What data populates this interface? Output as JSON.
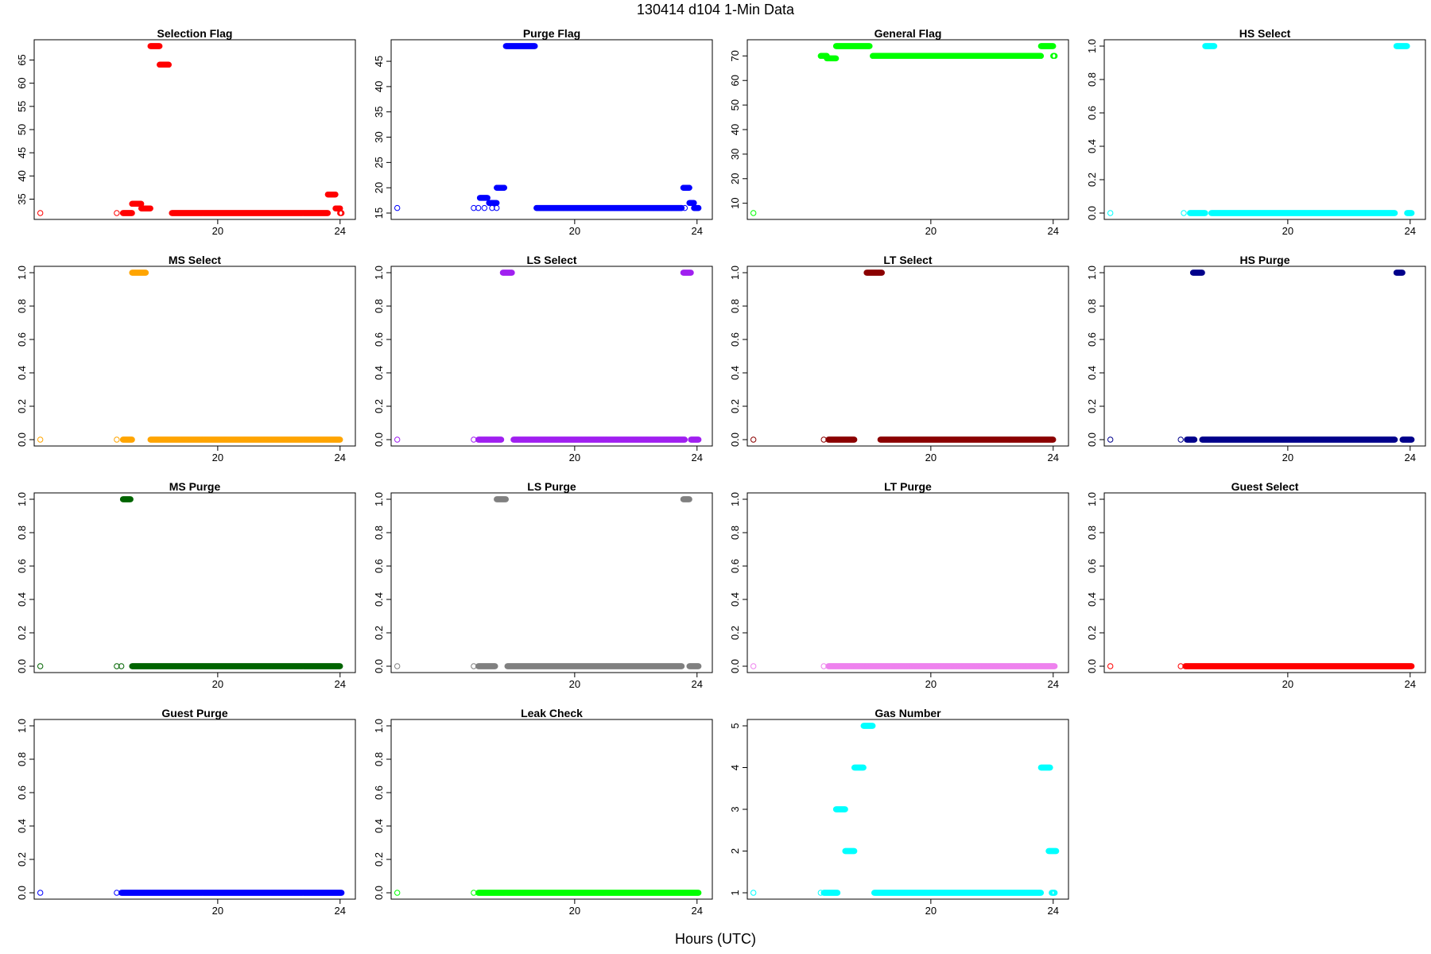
{
  "figure": {
    "title": "130414   d104   1-Min Data",
    "xlabel": "Hours (UTC)"
  },
  "chart_data": [
    {
      "type": "scatter",
      "title": "Selection Flag",
      "color": "#ff0000",
      "xlim": [
        14,
        24.5
      ],
      "ylim": [
        32,
        68
      ],
      "yticks": [
        35,
        40,
        45,
        50,
        55,
        60,
        65
      ],
      "xticks": [
        20,
        24
      ],
      "segments": [
        [
          14.2,
          14.2,
          32
        ],
        [
          16.7,
          16.7,
          32
        ],
        [
          16.9,
          17.2,
          32
        ],
        [
          17.2,
          17.5,
          34
        ],
        [
          17.5,
          17.8,
          33
        ],
        [
          17.8,
          18.1,
          68
        ],
        [
          18.1,
          18.4,
          64
        ],
        [
          18.5,
          23.6,
          32
        ],
        [
          23.6,
          23.85,
          36
        ],
        [
          23.85,
          24.0,
          33
        ],
        [
          24.0,
          24.05,
          32
        ]
      ]
    },
    {
      "type": "scatter",
      "title": "Purge Flag",
      "color": "#0000ff",
      "xlim": [
        14,
        24.5
      ],
      "ylim": [
        15,
        48
      ],
      "yticks": [
        15,
        20,
        25,
        30,
        35,
        40,
        45
      ],
      "xticks": [
        20,
        24
      ],
      "segments": [
        [
          14.2,
          14.2,
          16
        ],
        [
          16.7,
          16.7,
          16
        ],
        [
          16.85,
          16.85,
          16
        ],
        [
          17.05,
          17.05,
          16
        ],
        [
          17.3,
          17.3,
          16
        ],
        [
          17.45,
          17.45,
          16
        ],
        [
          16.9,
          17.15,
          18
        ],
        [
          17.2,
          17.45,
          17
        ],
        [
          17.45,
          17.7,
          20
        ],
        [
          17.75,
          18.7,
          48
        ],
        [
          18.75,
          23.5,
          16
        ],
        [
          23.55,
          23.75,
          20
        ],
        [
          23.6,
          23.6,
          16
        ],
        [
          23.75,
          23.9,
          17
        ],
        [
          23.9,
          24.05,
          16
        ]
      ]
    },
    {
      "type": "scatter",
      "title": "General Flag",
      "color": "#00ff00",
      "xlim": [
        14,
        24.5
      ],
      "ylim": [
        6,
        74
      ],
      "yticks": [
        10,
        20,
        30,
        40,
        50,
        60,
        70
      ],
      "xticks": [
        20,
        24
      ],
      "segments": [
        [
          14.2,
          14.2,
          6
        ],
        [
          16.4,
          16.6,
          70
        ],
        [
          16.6,
          16.9,
          69
        ],
        [
          16.9,
          18.0,
          74
        ],
        [
          18.1,
          23.6,
          70
        ],
        [
          23.6,
          24.0,
          74
        ],
        [
          24.0,
          24.05,
          70
        ]
      ]
    },
    {
      "type": "scatter",
      "title": "HS Select",
      "color": "#00ffff",
      "xlim": [
        14,
        24.5
      ],
      "ylim": [
        0,
        1
      ],
      "yticks": [
        0.0,
        0.2,
        0.4,
        0.6,
        0.8,
        1.0
      ],
      "xticks": [
        20,
        24
      ],
      "segments": [
        [
          14.2,
          14.2,
          0
        ],
        [
          16.6,
          16.6,
          0
        ],
        [
          16.8,
          17.3,
          0
        ],
        [
          17.5,
          23.5,
          0
        ],
        [
          23.9,
          24.05,
          0
        ],
        [
          17.3,
          17.6,
          1
        ],
        [
          23.55,
          23.9,
          1
        ]
      ]
    },
    {
      "type": "scatter",
      "title": "MS Select",
      "color": "#ffa500",
      "xlim": [
        14,
        24.5
      ],
      "ylim": [
        0,
        1
      ],
      "yticks": [
        0.0,
        0.2,
        0.4,
        0.6,
        0.8,
        1.0
      ],
      "xticks": [
        20,
        24
      ],
      "segments": [
        [
          14.2,
          14.2,
          0
        ],
        [
          16.7,
          16.7,
          0
        ],
        [
          16.9,
          17.2,
          0
        ],
        [
          17.8,
          24.0,
          0
        ],
        [
          17.2,
          17.65,
          1
        ]
      ]
    },
    {
      "type": "scatter",
      "title": "LS Select",
      "color": "#a020f0",
      "xlim": [
        14,
        24.5
      ],
      "ylim": [
        0,
        1
      ],
      "yticks": [
        0.0,
        0.2,
        0.4,
        0.6,
        0.8,
        1.0
      ],
      "xticks": [
        20,
        24
      ],
      "segments": [
        [
          14.2,
          14.2,
          0
        ],
        [
          16.7,
          16.7,
          0
        ],
        [
          16.85,
          17.6,
          0
        ],
        [
          18.0,
          23.6,
          0
        ],
        [
          23.8,
          24.05,
          0
        ],
        [
          17.65,
          17.95,
          1
        ],
        [
          23.55,
          23.8,
          1
        ]
      ]
    },
    {
      "type": "scatter",
      "title": "LT Select",
      "color": "#8b0000",
      "xlim": [
        14,
        24.5
      ],
      "ylim": [
        0,
        1
      ],
      "yticks": [
        0.0,
        0.2,
        0.4,
        0.6,
        0.8,
        1.0
      ],
      "xticks": [
        20,
        24
      ],
      "segments": [
        [
          14.2,
          14.2,
          0
        ],
        [
          16.5,
          16.5,
          0
        ],
        [
          16.65,
          17.5,
          0
        ],
        [
          18.35,
          24.0,
          0
        ],
        [
          17.9,
          18.4,
          1
        ]
      ]
    },
    {
      "type": "scatter",
      "title": "HS Purge",
      "color": "#00008b",
      "xlim": [
        14,
        24.5
      ],
      "ylim": [
        0,
        1
      ],
      "yticks": [
        0.0,
        0.2,
        0.4,
        0.6,
        0.8,
        1.0
      ],
      "xticks": [
        20,
        24
      ],
      "segments": [
        [
          14.2,
          14.2,
          0
        ],
        [
          16.5,
          16.5,
          0
        ],
        [
          16.7,
          16.95,
          0
        ],
        [
          17.2,
          23.5,
          0
        ],
        [
          23.75,
          24.05,
          0
        ],
        [
          16.9,
          17.2,
          1
        ],
        [
          23.55,
          23.75,
          1
        ]
      ]
    },
    {
      "type": "scatter",
      "title": "MS Purge",
      "color": "#006400",
      "xlim": [
        14,
        24.5
      ],
      "ylim": [
        0,
        1
      ],
      "yticks": [
        0.0,
        0.2,
        0.4,
        0.6,
        0.8,
        1.0
      ],
      "xticks": [
        20,
        24
      ],
      "segments": [
        [
          14.2,
          14.2,
          0
        ],
        [
          16.7,
          16.7,
          0
        ],
        [
          16.85,
          16.85,
          0
        ],
        [
          17.2,
          24.0,
          0
        ],
        [
          16.9,
          17.15,
          1
        ]
      ]
    },
    {
      "type": "scatter",
      "title": "LS Purge",
      "color": "#808080",
      "xlim": [
        14,
        24.5
      ],
      "ylim": [
        0,
        1
      ],
      "yticks": [
        0.0,
        0.2,
        0.4,
        0.6,
        0.8,
        1.0
      ],
      "xticks": [
        20,
        24
      ],
      "segments": [
        [
          14.2,
          14.2,
          0
        ],
        [
          16.7,
          16.7,
          0
        ],
        [
          16.85,
          17.4,
          0
        ],
        [
          17.8,
          23.5,
          0
        ],
        [
          23.75,
          24.05,
          0
        ],
        [
          17.45,
          17.75,
          1
        ],
        [
          23.55,
          23.75,
          1
        ]
      ]
    },
    {
      "type": "scatter",
      "title": "LT Purge",
      "color": "#ee82ee",
      "xlim": [
        14,
        24.5
      ],
      "ylim": [
        0,
        1
      ],
      "yticks": [
        0.0,
        0.2,
        0.4,
        0.6,
        0.8,
        1.0
      ],
      "xticks": [
        20,
        24
      ],
      "segments": [
        [
          14.2,
          14.2,
          0
        ],
        [
          16.5,
          16.5,
          0
        ],
        [
          16.65,
          24.05,
          0
        ]
      ]
    },
    {
      "type": "scatter",
      "title": "Guest Select",
      "color": "#ff0000",
      "xlim": [
        14,
        24.5
      ],
      "ylim": [
        0,
        1
      ],
      "yticks": [
        0.0,
        0.2,
        0.4,
        0.6,
        0.8,
        1.0
      ],
      "xticks": [
        20,
        24
      ],
      "segments": [
        [
          14.2,
          14.2,
          0
        ],
        [
          16.5,
          16.5,
          0
        ],
        [
          16.65,
          24.05,
          0
        ]
      ]
    },
    {
      "type": "scatter",
      "title": "Guest Purge",
      "color": "#0000ff",
      "xlim": [
        14,
        24.5
      ],
      "ylim": [
        0,
        1
      ],
      "yticks": [
        0.0,
        0.2,
        0.4,
        0.6,
        0.8,
        1.0
      ],
      "xticks": [
        20,
        24
      ],
      "segments": [
        [
          14.2,
          14.2,
          0
        ],
        [
          16.7,
          16.7,
          0
        ],
        [
          16.85,
          24.05,
          0
        ]
      ]
    },
    {
      "type": "scatter",
      "title": "Leak Check",
      "color": "#00ff00",
      "xlim": [
        14,
        24.5
      ],
      "ylim": [
        0,
        1
      ],
      "yticks": [
        0.0,
        0.2,
        0.4,
        0.6,
        0.8,
        1.0
      ],
      "xticks": [
        20,
        24
      ],
      "segments": [
        [
          14.2,
          14.2,
          0
        ],
        [
          16.7,
          16.7,
          0
        ],
        [
          16.85,
          24.05,
          0
        ]
      ]
    },
    {
      "type": "scatter",
      "title": "Gas Number",
      "color": "#00ffff",
      "xlim": [
        14,
        24.5
      ],
      "ylim": [
        1,
        5
      ],
      "yticks": [
        1,
        2,
        3,
        4,
        5
      ],
      "xticks": [
        20,
        24
      ],
      "segments": [
        [
          14.2,
          14.2,
          1
        ],
        [
          16.4,
          16.4,
          1
        ],
        [
          16.5,
          16.95,
          1
        ],
        [
          16.9,
          17.2,
          3
        ],
        [
          17.2,
          17.5,
          2
        ],
        [
          17.5,
          17.8,
          4
        ],
        [
          17.8,
          18.1,
          5
        ],
        [
          18.15,
          23.6,
          1
        ],
        [
          23.6,
          23.9,
          4
        ],
        [
          23.85,
          24.1,
          2
        ],
        [
          23.95,
          24.05,
          1
        ]
      ]
    }
  ]
}
